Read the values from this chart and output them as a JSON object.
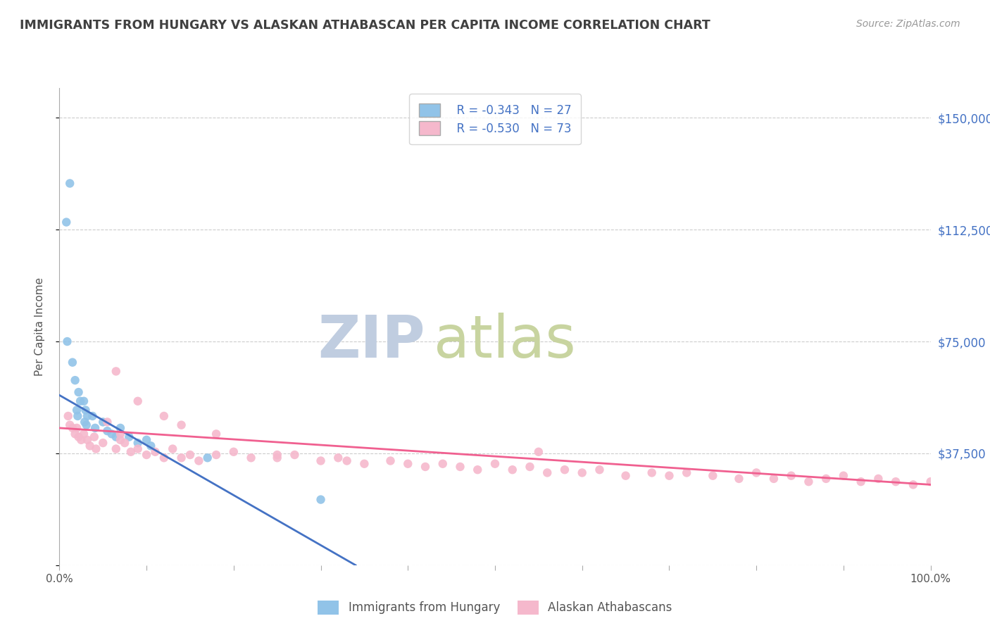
{
  "title": "IMMIGRANTS FROM HUNGARY VS ALASKAN ATHABASCAN PER CAPITA INCOME CORRELATION CHART",
  "source": "Source: ZipAtlas.com",
  "ylabel": "Per Capita Income",
  "xlim": [
    0,
    1.0
  ],
  "ylim": [
    0,
    160000
  ],
  "xticks": [
    0.0,
    0.1,
    0.2,
    0.3,
    0.4,
    0.5,
    0.6,
    0.7,
    0.8,
    0.9,
    1.0
  ],
  "xticklabels": [
    "0.0%",
    "",
    "",
    "",
    "",
    "",
    "",
    "",
    "",
    "",
    "100.0%"
  ],
  "ytick_positions": [
    0,
    37500,
    75000,
    112500,
    150000
  ],
  "ytick_labels": [
    "",
    "$37,500",
    "$75,000",
    "$112,500",
    "$150,000"
  ],
  "ytick_color": "#4472c4",
  "blue_color": "#91C3E8",
  "pink_color": "#F5B8CC",
  "blue_line_color": "#4472C4",
  "pink_line_color": "#F06090",
  "legend_R1": "R = -0.343",
  "legend_N1": "N = 27",
  "legend_R2": "R = -0.530",
  "legend_N2": "N = 73",
  "legend_label1": "Immigrants from Hungary",
  "legend_label2": "Alaskan Athabascans",
  "watermark_zip": "ZIP",
  "watermark_atlas": "atlas",
  "watermark_color_zip": "#B8CCE4",
  "watermark_color_atlas": "#C8D8B0",
  "title_color": "#404040",
  "background_color": "#FFFFFF",
  "blue_scatter_x": [
    0.012,
    0.008,
    0.009,
    0.015,
    0.018,
    0.022,
    0.024,
    0.02,
    0.021,
    0.028,
    0.03,
    0.032,
    0.029,
    0.031,
    0.038,
    0.041,
    0.05,
    0.055,
    0.06,
    0.065,
    0.07,
    0.08,
    0.09,
    0.1,
    0.105,
    0.17,
    0.3
  ],
  "blue_scatter_y": [
    128000,
    115000,
    75000,
    68000,
    62000,
    58000,
    55000,
    52000,
    50000,
    55000,
    52000,
    50000,
    48000,
    47000,
    50000,
    46000,
    48000,
    45000,
    44000,
    43000,
    46000,
    43000,
    41000,
    42000,
    40000,
    36000,
    22000
  ],
  "pink_scatter_x": [
    0.01,
    0.012,
    0.015,
    0.018,
    0.02,
    0.022,
    0.025,
    0.028,
    0.032,
    0.035,
    0.04,
    0.042,
    0.05,
    0.055,
    0.065,
    0.07,
    0.075,
    0.082,
    0.09,
    0.1,
    0.11,
    0.12,
    0.13,
    0.14,
    0.15,
    0.16,
    0.18,
    0.2,
    0.22,
    0.25,
    0.27,
    0.3,
    0.32,
    0.33,
    0.35,
    0.38,
    0.4,
    0.42,
    0.44,
    0.46,
    0.48,
    0.5,
    0.52,
    0.54,
    0.56,
    0.58,
    0.6,
    0.62,
    0.65,
    0.68,
    0.7,
    0.72,
    0.75,
    0.78,
    0.8,
    0.82,
    0.84,
    0.86,
    0.88,
    0.9,
    0.92,
    0.94,
    0.96,
    0.98,
    1.0,
    0.07,
    0.065,
    0.09,
    0.12,
    0.14,
    0.18,
    0.25,
    0.55
  ],
  "pink_scatter_y": [
    50000,
    47000,
    46000,
    44000,
    46000,
    43000,
    42000,
    44000,
    42000,
    40000,
    43000,
    39000,
    41000,
    48000,
    39000,
    44000,
    41000,
    38000,
    39000,
    37000,
    38000,
    36000,
    39000,
    36000,
    37000,
    35000,
    37000,
    38000,
    36000,
    36000,
    37000,
    35000,
    36000,
    35000,
    34000,
    35000,
    34000,
    33000,
    34000,
    33000,
    32000,
    34000,
    32000,
    33000,
    31000,
    32000,
    31000,
    32000,
    30000,
    31000,
    30000,
    31000,
    30000,
    29000,
    31000,
    29000,
    30000,
    28000,
    29000,
    30000,
    28000,
    29000,
    28000,
    27000,
    28000,
    42000,
    65000,
    55000,
    50000,
    47000,
    44000,
    37000,
    38000
  ],
  "blue_line_x": [
    0.0,
    0.34
  ],
  "blue_line_y": [
    57000,
    0
  ],
  "pink_line_x": [
    0.0,
    1.0
  ],
  "pink_line_y": [
    46000,
    27000
  ],
  "grid_color": "#CCCCCC",
  "grid_linestyle": "--"
}
